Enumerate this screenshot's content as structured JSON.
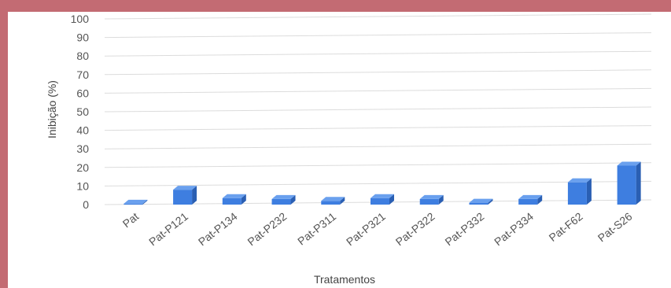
{
  "chart_data": {
    "type": "bar",
    "title": "",
    "xlabel": "Tratamentos",
    "ylabel": "Inibição (%)",
    "ylim": [
      0,
      100
    ],
    "yticks": [
      0,
      10,
      20,
      30,
      40,
      50,
      60,
      70,
      80,
      90,
      100
    ],
    "categories": [
      "Pat",
      "Pat-P121",
      "Pat-P134",
      "Pat-P232",
      "Pat-P311",
      "Pat-P321",
      "Pat-P322",
      "Pat-P332",
      "Pat-P334",
      "Pat-F62",
      "Pat-S26"
    ],
    "values": [
      0.5,
      8,
      3.5,
      3,
      2,
      3.5,
      3,
      1,
      3,
      12,
      21
    ],
    "grid": true,
    "style_3d": true,
    "colors": {
      "bar_front": "#3e7ee0",
      "bar_side": "#2a5fb3",
      "bar_top": "#6aa0ee",
      "grid": "#dcdcdc",
      "frame": "#c36b73"
    }
  }
}
